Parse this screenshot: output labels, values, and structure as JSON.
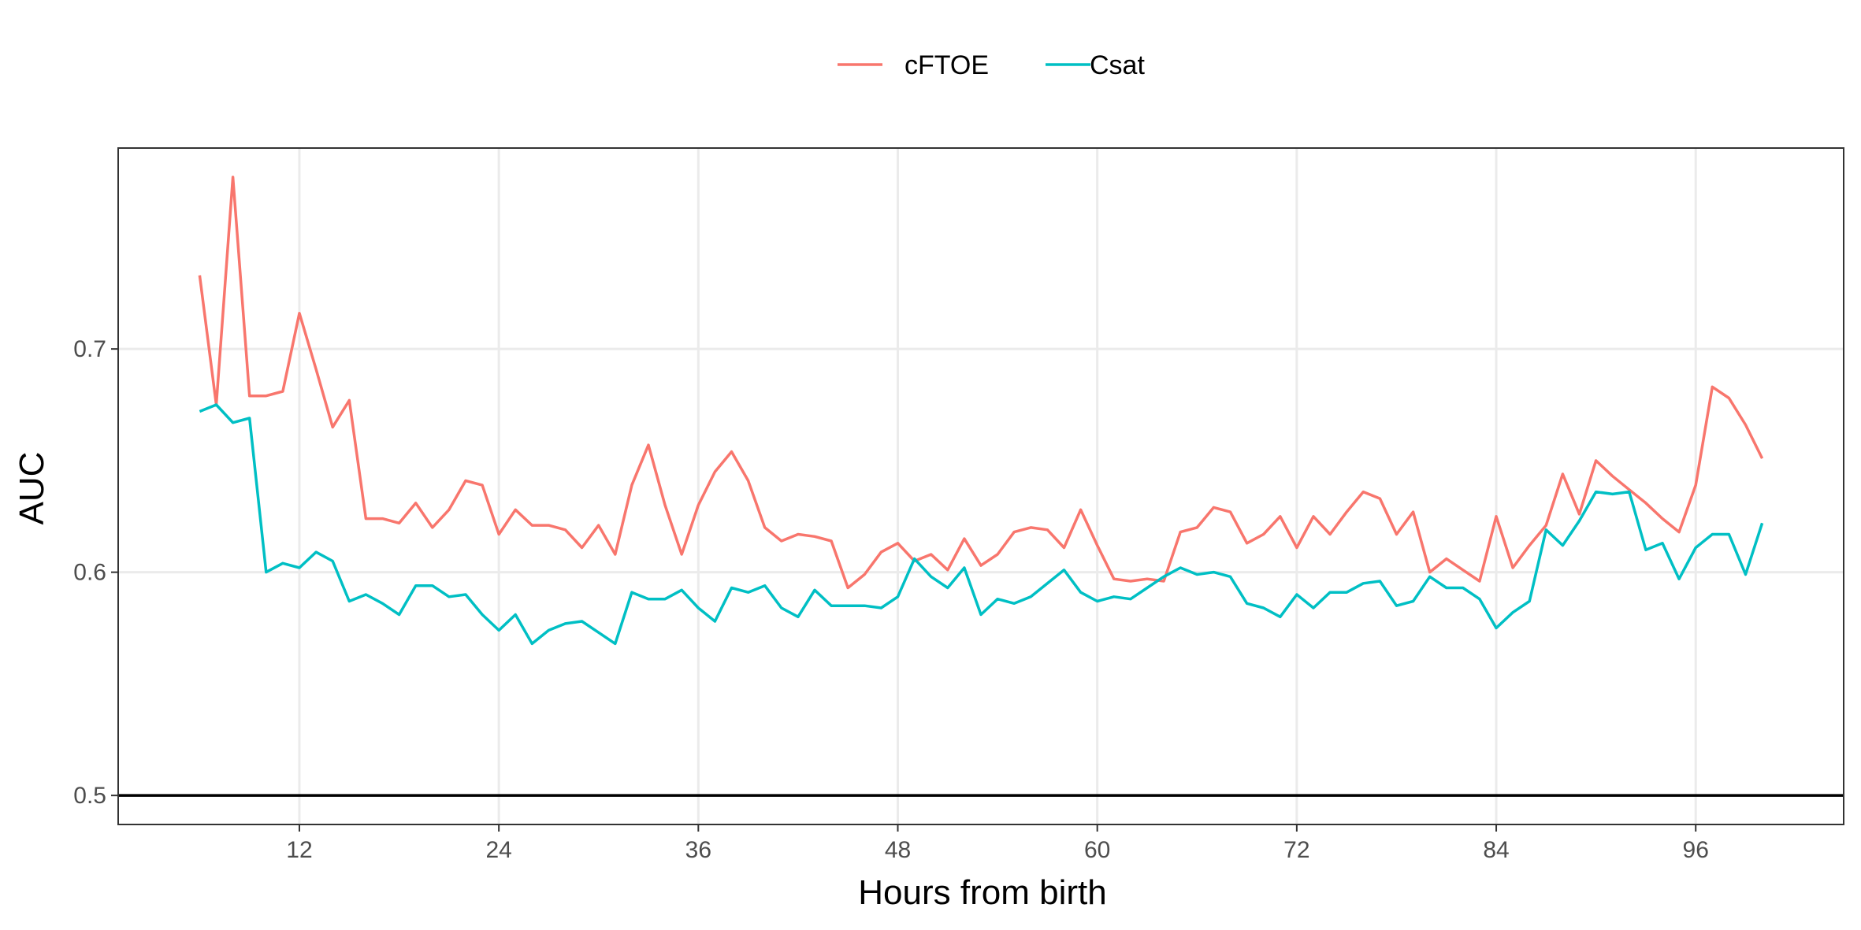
{
  "chart_data": {
    "type": "line",
    "xlabel": "Hours from birth",
    "ylabel": "AUC",
    "xlim": [
      1.1,
      104.9
    ],
    "ylim": [
      0.487,
      0.79
    ],
    "xticks": [
      12,
      24,
      36,
      48,
      60,
      72,
      84,
      96
    ],
    "yticks": [
      0.5,
      0.6,
      0.7
    ],
    "xtick_labels": [
      "12",
      "24",
      "36",
      "48",
      "60",
      "72",
      "84",
      "96"
    ],
    "ytick_labels": [
      "0.5",
      "0.6",
      "0.7"
    ],
    "reference_line": 0.5,
    "grid": true,
    "legend_position": "top",
    "x": [
      6,
      7,
      8,
      9,
      10,
      11,
      12,
      13,
      14,
      15,
      16,
      17,
      18,
      19,
      20,
      21,
      22,
      23,
      24,
      25,
      26,
      27,
      28,
      29,
      30,
      31,
      32,
      33,
      34,
      35,
      36,
      37,
      38,
      39,
      40,
      41,
      42,
      43,
      44,
      45,
      46,
      47,
      48,
      49,
      50,
      51,
      52,
      53,
      54,
      55,
      56,
      57,
      58,
      59,
      60,
      61,
      62,
      63,
      64,
      65,
      66,
      67,
      68,
      69,
      70,
      71,
      72,
      73,
      74,
      75,
      76,
      77,
      78,
      79,
      80,
      81,
      82,
      83,
      84,
      85,
      86,
      87,
      88,
      89,
      90,
      91,
      92,
      93,
      94,
      95,
      96,
      97,
      98,
      99,
      100
    ],
    "series": [
      {
        "name": "cFTOE",
        "color": "#F8766D",
        "values": [
          0.733,
          0.675,
          0.777,
          0.679,
          0.679,
          0.681,
          0.716,
          0.691,
          0.665,
          0.677,
          0.624,
          0.624,
          0.622,
          0.631,
          0.62,
          0.628,
          0.641,
          0.639,
          0.617,
          0.628,
          0.621,
          0.621,
          0.619,
          0.611,
          0.621,
          0.608,
          0.639,
          0.657,
          0.63,
          0.608,
          0.63,
          0.645,
          0.654,
          0.641,
          0.62,
          0.614,
          0.617,
          0.616,
          0.614,
          0.593,
          0.599,
          0.609,
          0.613,
          0.605,
          0.608,
          0.601,
          0.615,
          0.603,
          0.608,
          0.618,
          0.62,
          0.619,
          0.611,
          0.628,
          0.612,
          0.597,
          0.596,
          0.597,
          0.596,
          0.618,
          0.62,
          0.629,
          0.627,
          0.613,
          0.617,
          0.625,
          0.611,
          0.625,
          0.617,
          0.627,
          0.636,
          0.633,
          0.617,
          0.627,
          0.6,
          0.606,
          0.601,
          0.596,
          0.625,
          0.602,
          0.612,
          0.621,
          0.644,
          0.626,
          0.65,
          0.643,
          0.637,
          0.631,
          0.624,
          0.618,
          0.639,
          0.683,
          0.678,
          0.666,
          0.651
        ]
      },
      {
        "name": "Csat",
        "color": "#00BFC4",
        "values": [
          0.672,
          0.675,
          0.667,
          0.669,
          0.6,
          0.604,
          0.602,
          0.609,
          0.605,
          0.587,
          0.59,
          0.586,
          0.581,
          0.594,
          0.594,
          0.589,
          0.59,
          0.581,
          0.574,
          0.581,
          0.568,
          0.574,
          0.577,
          0.578,
          0.573,
          0.568,
          0.591,
          0.588,
          0.588,
          0.592,
          0.584,
          0.578,
          0.593,
          0.591,
          0.594,
          0.584,
          0.58,
          0.592,
          0.585,
          0.585,
          0.585,
          0.584,
          0.589,
          0.606,
          0.598,
          0.593,
          0.602,
          0.581,
          0.588,
          0.586,
          0.589,
          0.595,
          0.601,
          0.591,
          0.587,
          0.589,
          0.588,
          0.593,
          0.598,
          0.602,
          0.599,
          0.6,
          0.598,
          0.586,
          0.584,
          0.58,
          0.59,
          0.584,
          0.591,
          0.591,
          0.595,
          0.596,
          0.585,
          0.587,
          0.598,
          0.593,
          0.593,
          0.588,
          0.575,
          0.582,
          0.587,
          0.619,
          0.612,
          0.623,
          0.636,
          0.635,
          0.636,
          0.61,
          0.613,
          0.597,
          0.611,
          0.617,
          0.617,
          0.599,
          0.622
        ]
      }
    ]
  }
}
